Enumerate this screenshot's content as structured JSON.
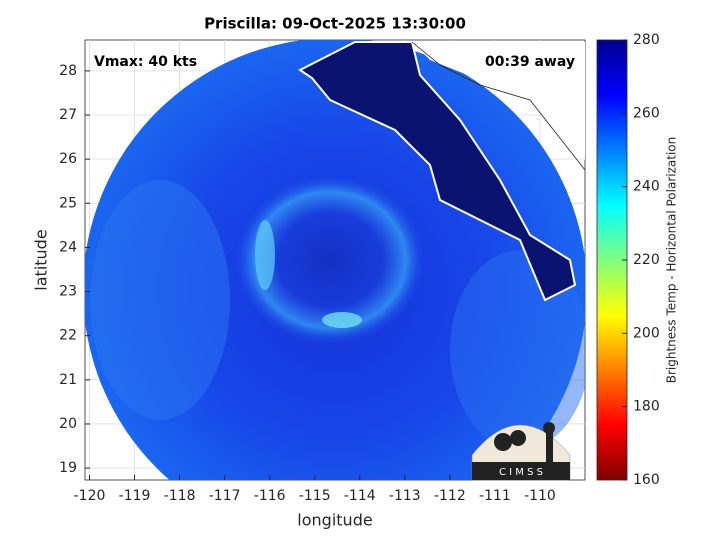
{
  "chart_data": {
    "type": "map",
    "title": "Priscilla: 09-Oct-2025 13:30:00",
    "annotations": [
      "Vmax: 40 kts",
      "00:39 away"
    ],
    "x_label": "longitude",
    "y_label": "latitude",
    "xlim": [
      -120.1,
      -109.0
    ],
    "ylim": [
      18.73,
      28.7
    ],
    "xticks": [
      -120,
      -119,
      -118,
      -117,
      -116,
      -115,
      -114,
      -113,
      -112,
      -111,
      -110
    ],
    "yticks": [
      19,
      20,
      21,
      22,
      23,
      24,
      25,
      26,
      27,
      28
    ],
    "grid": true,
    "colorbar": {
      "label": "Brightness Temp - Horizontal Polarization",
      "clim": [
        160,
        280
      ],
      "ticks": [
        160,
        180,
        200,
        220,
        240,
        260,
        280
      ]
    },
    "logo": "C I M S S"
  }
}
